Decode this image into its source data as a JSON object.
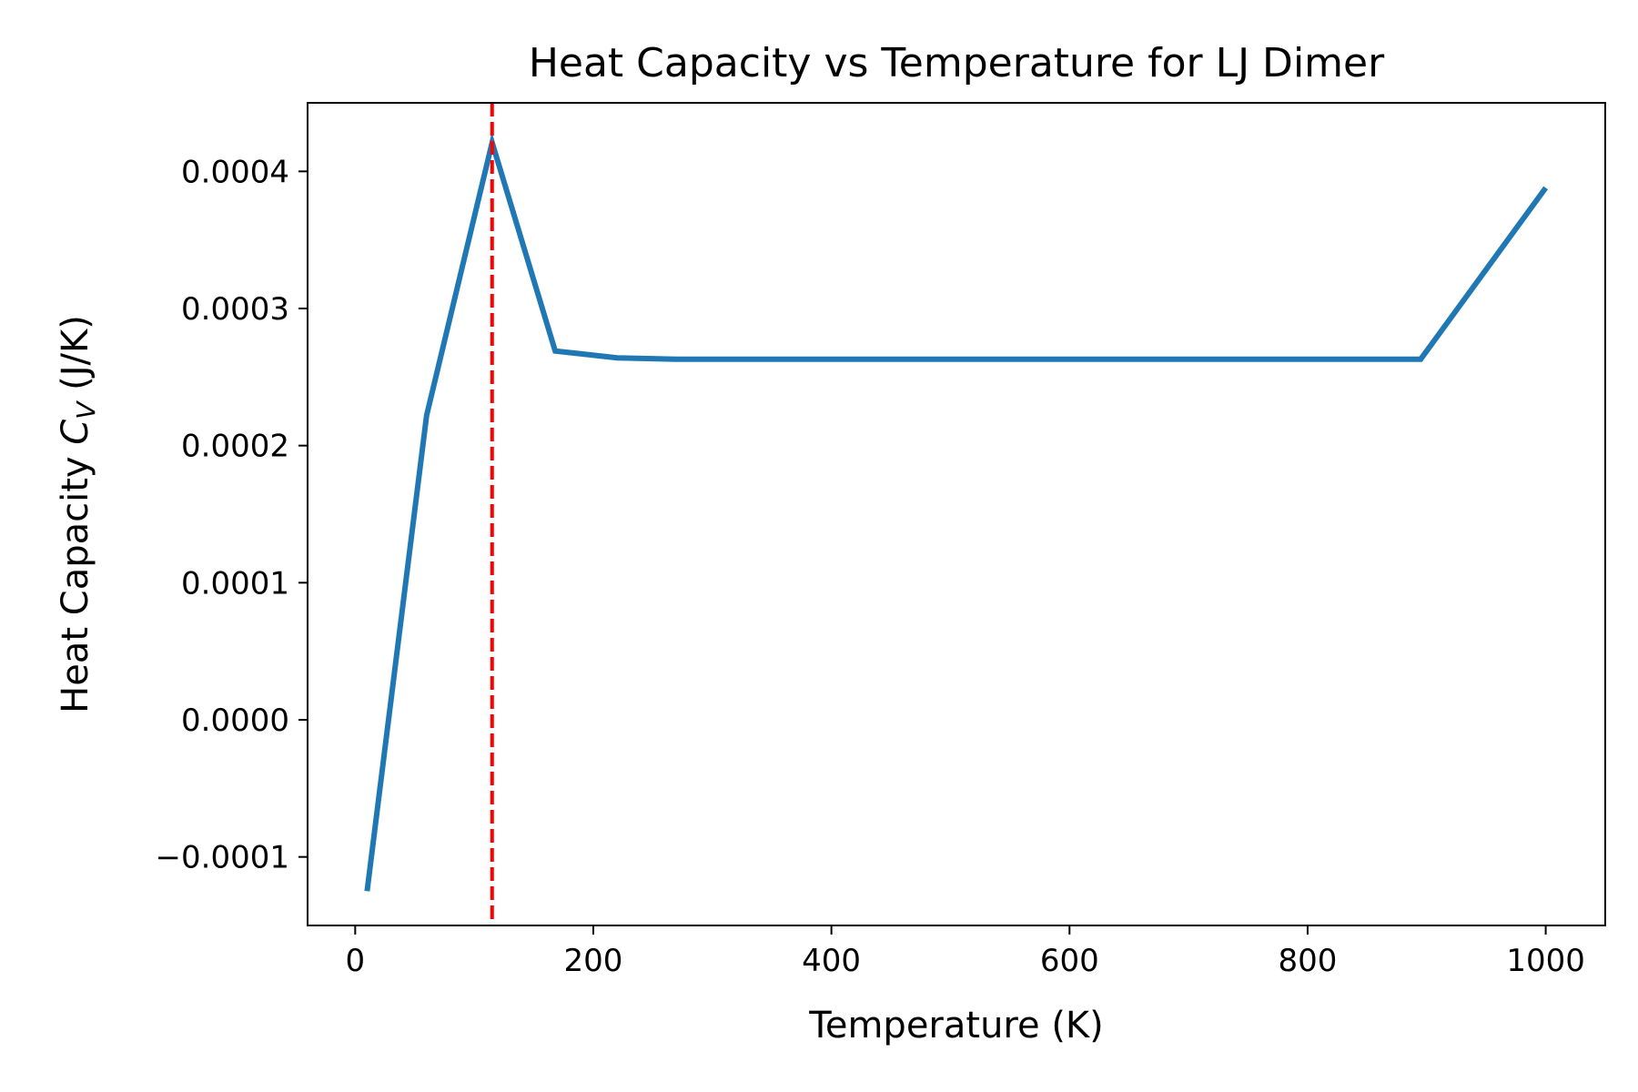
{
  "chart_data": {
    "type": "line",
    "title": "Heat Capacity vs Temperature for LJ Dimer",
    "xlabel": "Temperature (K)",
    "ylabel": {
      "prefix": "Heat Capacity ",
      "symbol": "C",
      "subscript": "V",
      "suffix": " (J/K)"
    },
    "xlim": [
      -40,
      1050
    ],
    "ylim": [
      -0.00015,
      0.00045
    ],
    "x_ticks": [
      0,
      200,
      400,
      600,
      800,
      1000
    ],
    "x_tick_labels": [
      "0",
      "200",
      "400",
      "600",
      "800",
      "1000"
    ],
    "y_ticks": [
      -0.0001,
      0.0,
      0.0001,
      0.0002,
      0.0003,
      0.0004
    ],
    "y_tick_labels": [
      "−0.0001",
      "0.0000",
      "0.0001",
      "0.0002",
      "0.0003",
      "0.0004"
    ],
    "grid": false,
    "series": [
      {
        "color": "#1f77b4",
        "x": [
          10,
          60,
          115,
          168,
          220,
          270,
          320,
          370,
          420,
          470,
          520,
          570,
          620,
          670,
          720,
          770,
          820,
          870,
          895,
          1000
        ],
        "y": [
          -0.000125,
          0.000222,
          0.000421,
          0.000269,
          0.000264,
          0.000263,
          0.000263,
          0.000263,
          0.000263,
          0.000263,
          0.000263,
          0.000263,
          0.000263,
          0.000263,
          0.000263,
          0.000263,
          0.000263,
          0.000263,
          0.000263,
          0.000388
        ]
      }
    ],
    "vertical_lines": [
      {
        "x": 115,
        "color": "#ff0000",
        "style": "dashed"
      }
    ]
  }
}
